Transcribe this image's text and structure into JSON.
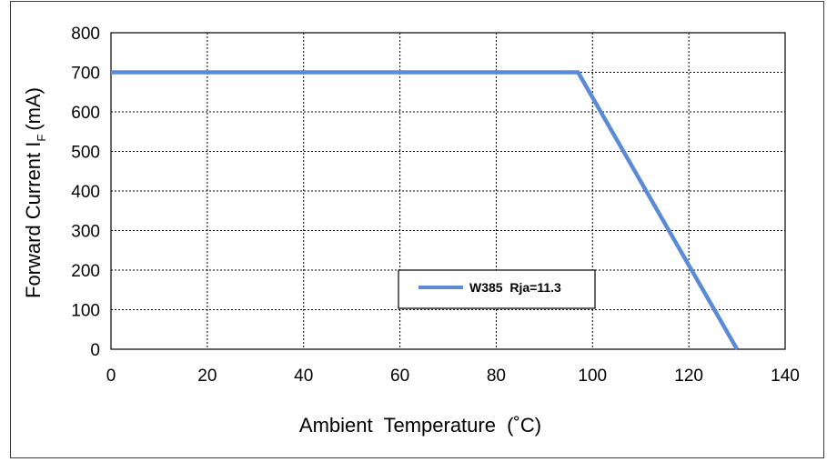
{
  "chart_data": {
    "type": "line",
    "title": "",
    "xlabel": "Ambient  Temperature  (˚C)",
    "ylabel": {
      "main": "Forward Current I",
      "subscript": "F",
      "unit": "(mA)"
    },
    "xlim": [
      0,
      140
    ],
    "ylim": [
      0,
      800
    ],
    "xticks": [
      "0",
      "20",
      "40",
      "60",
      "80",
      "100",
      "120",
      "140"
    ],
    "yticks": [
      "0",
      "100",
      "200",
      "300",
      "400",
      "500",
      "600",
      "700",
      "800"
    ],
    "grid": true,
    "legend_position": "center-bottom",
    "series": [
      {
        "name": "W385  Rja=11.3",
        "color": "#5b8bd6",
        "x": [
          0,
          97,
          130
        ],
        "y": [
          700,
          700,
          0
        ]
      }
    ]
  }
}
